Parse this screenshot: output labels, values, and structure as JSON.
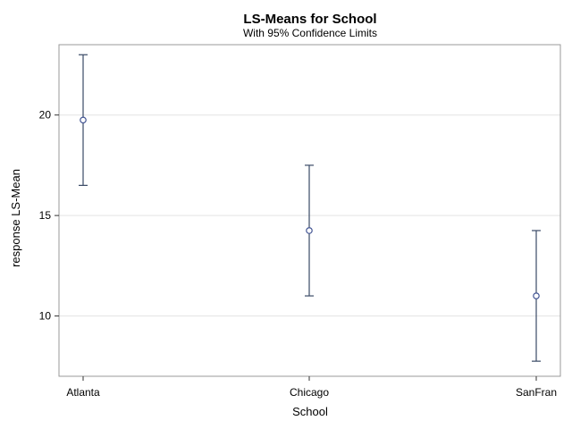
{
  "chart_data": {
    "type": "scatter",
    "title": "LS-Means for School",
    "subtitle": "With 95% Confidence Limits",
    "xlabel": "School",
    "ylabel": "response LS-Mean",
    "categories": [
      "Atlanta",
      "Chicago",
      "SanFran"
    ],
    "series": [
      {
        "values": [
          19.75,
          14.25,
          11.0
        ],
        "lower": [
          16.5,
          11.0,
          7.75
        ],
        "upper": [
          23.0,
          17.5,
          14.25
        ]
      }
    ],
    "ylim": [
      7.0,
      23.5
    ],
    "yticks": [
      10,
      15,
      20
    ],
    "grid": "horizontal",
    "colors": {
      "marker": "#445694",
      "errorbar": "#3a4a66",
      "grid": "#e4e4e4",
      "frame": "#9a9a9a"
    }
  }
}
